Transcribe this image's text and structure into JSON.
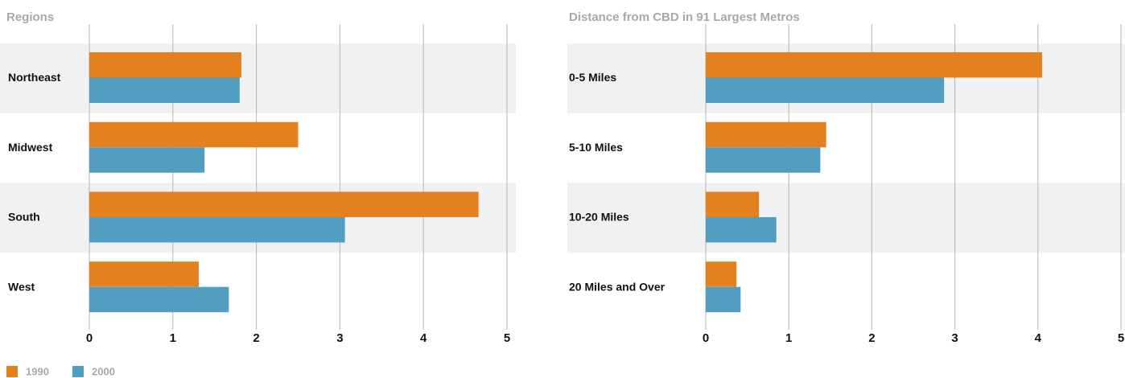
{
  "chart_data": [
    {
      "type": "bar",
      "orientation": "horizontal",
      "title": "Regions",
      "categories": [
        "Northeast",
        "Midwest",
        "South",
        "West"
      ],
      "series": [
        {
          "name": "1990",
          "color": "#e5801f",
          "values": [
            1.82,
            2.5,
            4.66,
            1.31
          ]
        },
        {
          "name": "2000",
          "color": "#519ec1",
          "values": [
            1.8,
            1.38,
            3.06,
            1.67
          ]
        }
      ],
      "xlim": [
        0,
        5
      ],
      "xticks": [
        0,
        1,
        2,
        3,
        4,
        5
      ],
      "grid": true,
      "legend": "bottom-left"
    },
    {
      "type": "bar",
      "orientation": "horizontal",
      "title": "Distance from CBD in 91 Largest Metros",
      "categories": [
        "0-5 Miles",
        "5-10  Miles",
        "10-20 Miles",
        "20 Miles and Over"
      ],
      "series": [
        {
          "name": "1990",
          "color": "#e5801f",
          "values": [
            4.05,
            1.45,
            0.64,
            0.37
          ]
        },
        {
          "name": "2000",
          "color": "#519ec1",
          "values": [
            2.87,
            1.38,
            0.85,
            0.42
          ]
        }
      ],
      "xlim": [
        0,
        5
      ],
      "xticks": [
        0,
        1,
        2,
        3,
        4,
        5
      ],
      "grid": true
    }
  ]
}
